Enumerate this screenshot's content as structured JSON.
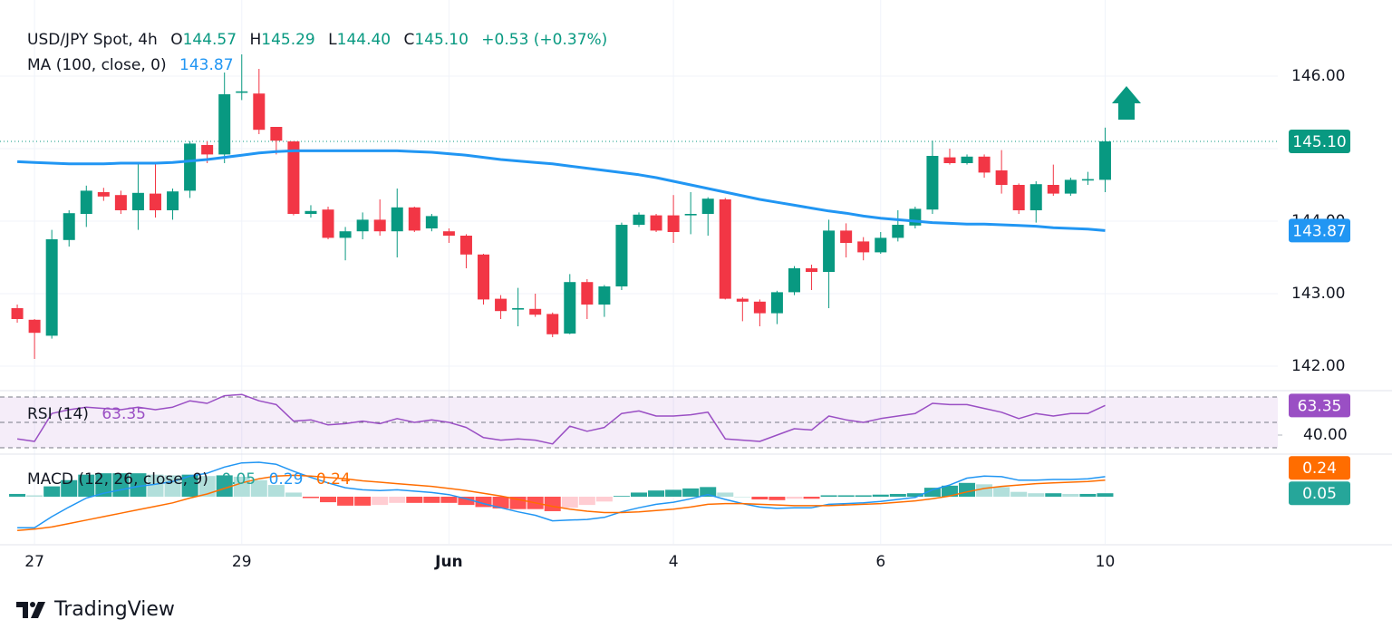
{
  "chart_data": {
    "type": "candlestick",
    "title": "USD/JPY Spot, 4h",
    "ohlc_letters": [
      "O",
      "H",
      "L",
      "C"
    ],
    "ohlc_texts": [
      "144.57",
      "145.29",
      "144.40",
      "145.10"
    ],
    "change": "+0.53 (+0.37%)",
    "up_color": "#089981",
    "down_color": "#f23645",
    "open": [
      142.8,
      142.64,
      142.42,
      143.74,
      144.1,
      144.4,
      144.36,
      144.15,
      144.38,
      144.15,
      144.42,
      145.05,
      144.92,
      145.77,
      145.76,
      145.3,
      145.1,
      144.1,
      144.16,
      143.77,
      143.86,
      144.02,
      143.86,
      144.19,
      143.9,
      143.86,
      143.8,
      143.54,
      142.93,
      142.78,
      142.79,
      142.72,
      142.45,
      143.16,
      142.85,
      143.1,
      143.95,
      144.08,
      144.08,
      144.08,
      144.1,
      144.3,
      142.93,
      142.89,
      142.73,
      143.02,
      143.35,
      143.3,
      143.87,
      143.72,
      143.57,
      143.77,
      143.94,
      144.16,
      144.88,
      144.8,
      144.89,
      144.7,
      144.5,
      144.15,
      144.5,
      144.38,
      144.56,
      144.57
    ],
    "high": [
      142.85,
      142.65,
      143.88,
      144.15,
      144.49,
      144.46,
      144.42,
      144.8,
      144.8,
      144.45,
      145.1,
      145.1,
      146.05,
      146.3,
      146.1,
      145.3,
      145.1,
      144.22,
      144.2,
      143.92,
      144.12,
      144.3,
      144.45,
      144.2,
      144.1,
      143.9,
      143.82,
      143.55,
      142.98,
      143.08,
      143.0,
      142.74,
      143.27,
      143.2,
      143.12,
      143.98,
      144.12,
      144.1,
      144.36,
      144.4,
      144.33,
      144.32,
      142.95,
      142.92,
      143.04,
      143.38,
      143.4,
      144.02,
      143.97,
      143.78,
      143.85,
      144.15,
      144.2,
      145.11,
      145.0,
      144.92,
      144.92,
      144.98,
      144.52,
      144.55,
      144.78,
      144.6,
      144.68,
      145.29
    ],
    "low": [
      142.6,
      142.1,
      142.38,
      143.65,
      143.92,
      144.28,
      144.1,
      143.88,
      144.05,
      144.02,
      144.32,
      144.8,
      144.8,
      145.67,
      145.2,
      144.92,
      144.08,
      144.05,
      143.75,
      143.46,
      143.75,
      143.8,
      143.5,
      143.85,
      143.86,
      143.7,
      143.35,
      142.85,
      142.65,
      142.55,
      142.68,
      142.4,
      142.44,
      142.65,
      142.68,
      143.05,
      143.92,
      143.85,
      143.7,
      143.82,
      143.8,
      142.92,
      142.62,
      142.55,
      142.58,
      142.98,
      143.05,
      142.8,
      143.5,
      143.46,
      143.55,
      143.72,
      143.9,
      144.1,
      144.78,
      144.78,
      144.6,
      144.38,
      144.1,
      143.98,
      144.35,
      144.35,
      144.5,
      144.4
    ],
    "close": [
      142.65,
      142.46,
      143.75,
      144.11,
      144.42,
      144.34,
      144.15,
      144.39,
      144.15,
      144.41,
      145.07,
      144.92,
      145.75,
      145.79,
      145.26,
      145.11,
      144.1,
      144.14,
      143.77,
      143.86,
      144.02,
      143.86,
      144.19,
      143.87,
      144.07,
      143.8,
      143.54,
      142.92,
      142.76,
      142.8,
      142.71,
      142.44,
      143.16,
      142.85,
      143.1,
      143.95,
      144.09,
      143.87,
      143.85,
      144.1,
      144.31,
      142.93,
      142.89,
      142.73,
      143.02,
      143.35,
      143.3,
      143.87,
      143.7,
      143.57,
      143.77,
      143.95,
      144.17,
      144.9,
      144.8,
      144.89,
      144.67,
      144.5,
      144.15,
      144.51,
      144.38,
      144.57,
      144.58,
      145.1
    ],
    "last_price_label": "145.10",
    "ma": {
      "name": "MA (100, close, 0)",
      "color": "#2196f3",
      "last_label": "143.87",
      "values": [
        144.82,
        144.81,
        144.8,
        144.79,
        144.79,
        144.79,
        144.8,
        144.8,
        144.8,
        144.81,
        144.83,
        144.85,
        144.88,
        144.91,
        144.94,
        144.96,
        144.97,
        144.97,
        144.97,
        144.97,
        144.97,
        144.97,
        144.97,
        144.96,
        144.95,
        144.93,
        144.91,
        144.88,
        144.85,
        144.83,
        144.81,
        144.79,
        144.76,
        144.73,
        144.7,
        144.67,
        144.64,
        144.6,
        144.55,
        144.5,
        144.45,
        144.4,
        144.35,
        144.3,
        144.26,
        144.22,
        144.18,
        144.14,
        144.11,
        144.07,
        144.04,
        144.02,
        144.0,
        143.98,
        143.97,
        143.96,
        143.96,
        143.95,
        143.94,
        143.93,
        143.91,
        143.9,
        143.89,
        143.87
      ]
    },
    "xlim": [
      -1,
      73
    ],
    "xticks": [
      {
        "value": 1,
        "label": "27"
      },
      {
        "value": 13,
        "label": "29"
      },
      {
        "value": 25,
        "label": "Jun"
      },
      {
        "value": 38,
        "label": "4"
      },
      {
        "value": 50,
        "label": "6"
      },
      {
        "value": 63,
        "label": "10"
      }
    ],
    "ylim": [
      141.675,
      147.05
    ],
    "yticks": [
      {
        "value": 142,
        "label": "142.00"
      },
      {
        "value": 143,
        "label": "143.00"
      },
      {
        "value": 144,
        "label": "144.00"
      },
      {
        "value": 145,
        "label": "145.00"
      },
      {
        "value": 146,
        "label": "146.00"
      }
    ],
    "grid": true,
    "rsi": {
      "name": "RSI (14)",
      "color": "#9a4fc4",
      "last_label": "63.35",
      "ylim": [
        25.7,
        74.3
      ],
      "levels": [
        30,
        50,
        70
      ],
      "yticks": [
        {
          "value": 40,
          "label": "40.00"
        }
      ],
      "values": [
        37,
        35,
        57,
        60,
        62,
        61,
        60,
        62,
        60,
        62,
        67,
        65,
        71,
        72,
        67,
        64,
        51,
        52,
        48,
        49,
        51,
        49,
        53,
        50,
        52,
        50,
        46,
        38,
        36,
        37,
        36,
        33,
        47,
        43,
        46,
        57,
        59,
        55,
        55,
        56,
        58,
        37,
        36,
        35,
        40,
        45,
        44,
        55,
        52,
        50,
        53,
        55,
        57,
        65,
        64,
        64,
        61,
        58,
        53,
        57,
        55,
        57,
        57,
        63.35
      ]
    },
    "macd": {
      "name": "MACD (12, 26, close, 9)",
      "ylim": [
        -0.684,
        0.605
      ],
      "histogram": {
        "last_label": "0.05",
        "colors": [
          "#26a69a",
          "#b2dfdb",
          "#ff5252",
          "#ffcdd2"
        ],
        "values": [
          0.04,
          0.02,
          0.15,
          0.24,
          0.32,
          0.34,
          0.34,
          0.34,
          0.32,
          0.31,
          0.32,
          0.3,
          0.31,
          0.29,
          0.24,
          0.17,
          0.06,
          -0.02,
          -0.08,
          -0.13,
          -0.13,
          -0.12,
          -0.09,
          -0.09,
          -0.09,
          -0.09,
          -0.12,
          -0.15,
          -0.17,
          -0.18,
          -0.18,
          -0.21,
          -0.16,
          -0.12,
          -0.07,
          0.01,
          0.06,
          0.09,
          0.1,
          0.12,
          0.14,
          0.06,
          0,
          -0.04,
          -0.05,
          -0.03,
          -0.03,
          0.02,
          0.02,
          0.02,
          0.03,
          0.04,
          0.05,
          0.13,
          0.16,
          0.2,
          0.18,
          0.14,
          0.07,
          0.05,
          0.05,
          0.04,
          0.04,
          0.05
        ]
      },
      "macd": {
        "color": "#2196f3",
        "last_label": "0.29",
        "values": [
          -0.45,
          -0.45,
          -0.29,
          -0.15,
          -0.02,
          0.05,
          0.1,
          0.15,
          0.18,
          0.22,
          0.3,
          0.34,
          0.43,
          0.49,
          0.5,
          0.47,
          0.37,
          0.28,
          0.2,
          0.13,
          0.1,
          0.09,
          0.1,
          0.08,
          0.06,
          0.03,
          -0.03,
          -0.1,
          -0.16,
          -0.22,
          -0.27,
          -0.35,
          -0.34,
          -0.33,
          -0.3,
          -0.22,
          -0.16,
          -0.11,
          -0.08,
          -0.03,
          0.03,
          -0.04,
          -0.1,
          -0.15,
          -0.17,
          -0.16,
          -0.16,
          -0.11,
          -0.1,
          -0.09,
          -0.07,
          -0.04,
          -0.01,
          0.1,
          0.17,
          0.27,
          0.3,
          0.29,
          0.24,
          0.24,
          0.25,
          0.25,
          0.26,
          0.29
        ]
      },
      "signal": {
        "color": "#ff6d00",
        "last_label": "0.24",
        "values": [
          -0.49,
          -0.47,
          -0.44,
          -0.39,
          -0.34,
          -0.29,
          -0.24,
          -0.19,
          -0.14,
          -0.09,
          -0.02,
          0.04,
          0.12,
          0.2,
          0.26,
          0.3,
          0.31,
          0.3,
          0.28,
          0.26,
          0.23,
          0.21,
          0.19,
          0.17,
          0.15,
          0.12,
          0.09,
          0.05,
          0.01,
          -0.04,
          -0.09,
          -0.14,
          -0.18,
          -0.21,
          -0.23,
          -0.23,
          -0.22,
          -0.2,
          -0.18,
          -0.15,
          -0.11,
          -0.1,
          -0.1,
          -0.11,
          -0.12,
          -0.13,
          -0.13,
          -0.13,
          -0.12,
          -0.11,
          -0.1,
          -0.08,
          -0.06,
          -0.03,
          0.01,
          0.07,
          0.12,
          0.15,
          0.17,
          0.19,
          0.2,
          0.21,
          0.22,
          0.24
        ]
      }
    },
    "brand": "TradingView"
  }
}
